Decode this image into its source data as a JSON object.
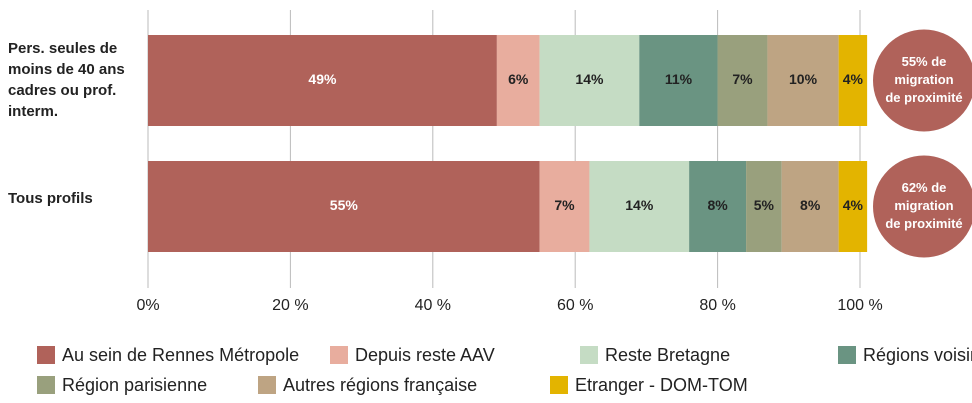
{
  "chart_data": {
    "type": "stacked-bar-horizontal",
    "categories": [
      "Pers. seules de moins de 40 ans cadres ou prof. interm.",
      "Tous profils"
    ],
    "series": [
      {
        "name": "Au sein de Rennes Métropole",
        "color": "#b0625a",
        "values": [
          49,
          55
        ],
        "value_labels": [
          "49%",
          "55%"
        ]
      },
      {
        "name": "Depuis reste AAV",
        "color": "#e8ad9e",
        "values": [
          6,
          7
        ],
        "value_labels": [
          "6%",
          "7%"
        ]
      },
      {
        "name": "Reste Bretagne",
        "color": "#c5dcc4",
        "values": [
          14,
          14
        ],
        "value_labels": [
          "14%",
          "14%"
        ]
      },
      {
        "name": "Régions voisines",
        "color": "#6a9482",
        "values": [
          11,
          8
        ],
        "value_labels": [
          "11%",
          "8%"
        ]
      },
      {
        "name": "Région parisienne",
        "color": "#99a07d",
        "values": [
          7,
          5
        ],
        "value_labels": [
          "7%",
          "5%"
        ]
      },
      {
        "name": "Autres régions française",
        "color": "#bea483",
        "values": [
          10,
          8
        ],
        "value_labels": [
          "10%",
          "8%"
        ]
      },
      {
        "name": "Etranger - DOM-TOM",
        "color": "#e3b400",
        "values": [
          4,
          4
        ],
        "value_labels": [
          "4%",
          "4%"
        ]
      }
    ],
    "xlim": [
      0,
      100
    ],
    "xticks": [
      {
        "value": 0,
        "label": "0%"
      },
      {
        "value": 20,
        "label": "20 %"
      },
      {
        "value": 40,
        "label": "40 %"
      },
      {
        "value": 60,
        "label": "60 %"
      },
      {
        "value": 80,
        "label": "80 %"
      },
      {
        "value": 100,
        "label": "100 %"
      }
    ],
    "grid": true,
    "annotations": [
      [
        "55% de",
        "migration",
        "de proximité"
      ],
      [
        "62% de",
        "migration",
        "de proximité"
      ]
    ],
    "annotation_color": "#b0625a"
  }
}
